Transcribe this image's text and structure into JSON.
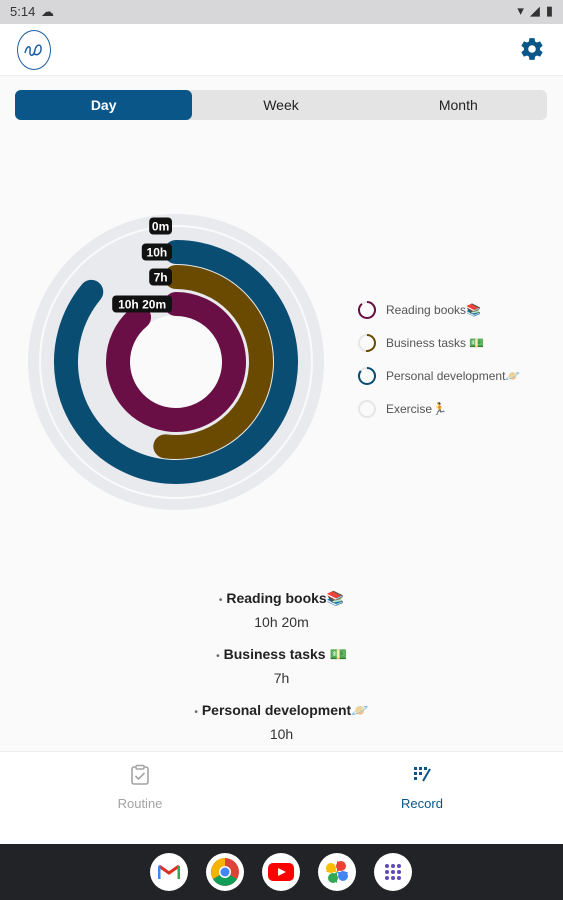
{
  "status": {
    "time": "5:14"
  },
  "tabs": [
    {
      "label": "Day",
      "active": true
    },
    {
      "label": "Week",
      "active": false
    },
    {
      "label": "Month",
      "active": false
    }
  ],
  "chart_data": {
    "type": "radial-bar",
    "rings": [
      {
        "label": "0m",
        "fraction": 0.0,
        "color": "#e9eaee"
      },
      {
        "label": "10h",
        "fraction": 0.86,
        "color": "#0a4d73"
      },
      {
        "label": "7h",
        "fraction": 0.52,
        "color": "#6a4a00"
      },
      {
        "label": "10h 20m",
        "fraction": 0.89,
        "color": "#6a0f46"
      }
    ]
  },
  "legend": [
    {
      "label": "Reading books📚",
      "color": "#6a0f46",
      "fraction": 0.89
    },
    {
      "label": "Business tasks 💵",
      "color": "#6a4a00",
      "fraction": 0.52
    },
    {
      "label": "Personal development🪐",
      "color": "#0a4d73",
      "fraction": 0.86
    },
    {
      "label": "Exercise🏃",
      "color": "#dddddd",
      "fraction": 0.0
    }
  ],
  "summary": [
    {
      "name": "Reading books📚",
      "value": "10h 20m"
    },
    {
      "name": "Business tasks 💵",
      "value": "7h"
    },
    {
      "name": "Personal development🪐",
      "value": "10h"
    }
  ],
  "bullet": "•",
  "nav": {
    "routine_label": "Routine",
    "record_label": "Record"
  },
  "dock": [
    "gmail-icon",
    "chrome-icon",
    "youtube-icon",
    "photos-icon",
    "apps-icon"
  ]
}
